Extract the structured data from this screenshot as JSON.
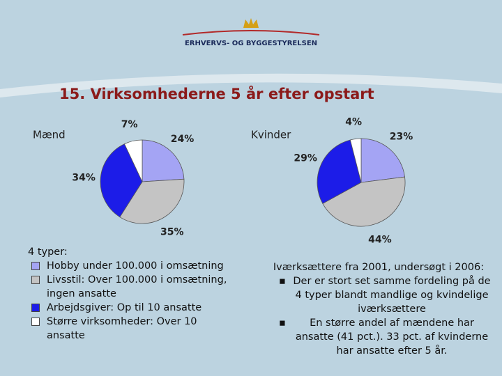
{
  "header": {
    "organization": "ERHVERVS- OG BYGGESTYRELSEN"
  },
  "title": "15. Virksomhederne 5 år efter opstart",
  "chart_data": [
    {
      "type": "pie",
      "title": "Mænd",
      "values": [
        24,
        35,
        34,
        7
      ],
      "value_labels": [
        "24%",
        "35%",
        "34%",
        "7%"
      ],
      "colors": [
        "#a4a4f4",
        "#c4c4c4",
        "#1c1ce8",
        "#ffffff"
      ]
    },
    {
      "type": "pie",
      "title": "Kvinder",
      "values": [
        23,
        44,
        29,
        4
      ],
      "value_labels": [
        "23%",
        "44%",
        "29%",
        "4%"
      ],
      "colors": [
        "#a4a4f4",
        "#c4c4c4",
        "#1c1ce8",
        "#ffffff"
      ]
    }
  ],
  "legend": {
    "title": "4 typer:",
    "items": [
      "Hobby under 100.000 i omsætning",
      "Livsstil: Over 100.000 i omsætning, ingen ansatte",
      "Arbejdsgiver: Op til 10 ansatte",
      "Større virksomheder: Over 10 ansatte"
    ]
  },
  "notes": {
    "intro": "Iværksættere fra 2001, undersøgt i 2006:",
    "bullets": [
      "Der er stort set samme fordeling på de 4 typer blandt mandlige og kvindelige iværksættere",
      "En større andel af mændene har ansatte (41 pct.). 33 pct. af kvinderne har ansatte efter 5 år."
    ]
  }
}
